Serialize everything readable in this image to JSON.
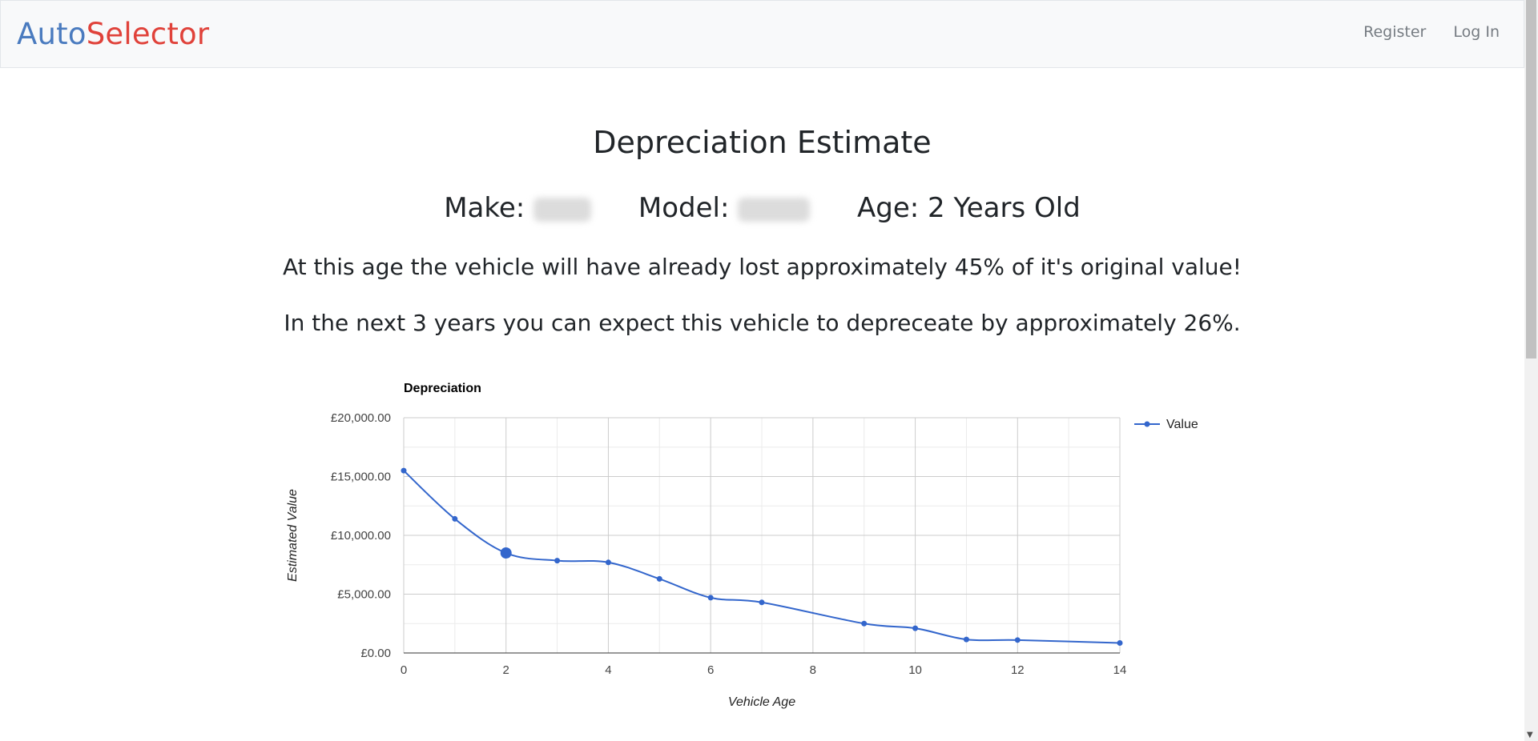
{
  "navbar": {
    "brand_part1": "Auto",
    "brand_part2": "Selector",
    "register": "Register",
    "login": "Log In"
  },
  "page": {
    "title": "Depreciation Estimate",
    "make_label": "Make:",
    "model_label": "Model:",
    "age_text": "Age: 2 Years Old",
    "lost_text": "At this age the vehicle will have already lost approximately 45% of it's original value!",
    "next_text": "In the next 3 years you can expect this vehicle to depreceate by approximately 26%."
  },
  "chart_data": {
    "type": "line",
    "title": "Depreciation",
    "xlabel": "Vehicle Age",
    "ylabel": "Estimated Value",
    "xlim": [
      0,
      14
    ],
    "ylim": [
      0,
      20000
    ],
    "xticks": [
      "0",
      "2",
      "4",
      "6",
      "8",
      "10",
      "12",
      "14"
    ],
    "yticks": [
      "£0.00",
      "£5,000.00",
      "£10,000.00",
      "£15,000.00",
      "£20,000.00"
    ],
    "legend_position": "right",
    "grid": true,
    "highlight_x": 2,
    "series": [
      {
        "name": "Value",
        "color": "#3366cc",
        "x": [
          0,
          1,
          2,
          3,
          4,
          5,
          6,
          7,
          9,
          10,
          11,
          12,
          14
        ],
        "y": [
          15500,
          11400,
          8500,
          7850,
          7700,
          6300,
          4700,
          4300,
          2500,
          2100,
          1150,
          1100,
          850
        ]
      }
    ]
  },
  "colors": {
    "brand_blue": "#4a7bbf",
    "brand_red": "#e0423a",
    "navbar_bg": "#f8f9fa",
    "series_blue": "#3366cc"
  }
}
